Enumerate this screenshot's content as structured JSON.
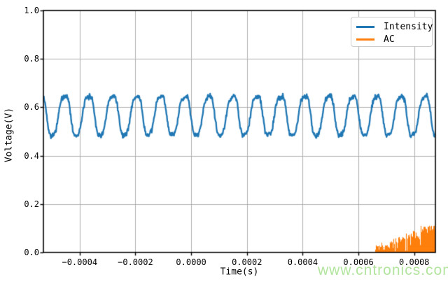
{
  "watermark": {
    "text": "www.cntronics.com",
    "color": "#b2e59e"
  },
  "chart_data": {
    "type": "line",
    "title": "",
    "xlabel": "Time(s)",
    "ylabel": "Voltage(V)",
    "xlim": [
      -0.00053,
      0.000876
    ],
    "ylim": [
      0.0,
      1.0
    ],
    "grid": true,
    "grid_color": "#b0b0b0",
    "spine_color": "#000000",
    "xticks": [
      {
        "value": -0.0004,
        "label": "−0.0004"
      },
      {
        "value": -0.0002,
        "label": "−0.0002"
      },
      {
        "value": 0.0,
        "label": "0.0000"
      },
      {
        "value": 0.0002,
        "label": "0.0002"
      },
      {
        "value": 0.0004,
        "label": "0.0004"
      },
      {
        "value": 0.0006,
        "label": "0.0006"
      },
      {
        "value": 0.0008,
        "label": "0.0008"
      }
    ],
    "yticks": [
      {
        "value": 0.0,
        "label": "0.0"
      },
      {
        "value": 0.2,
        "label": "0.2"
      },
      {
        "value": 0.4,
        "label": "0.4"
      },
      {
        "value": 0.6,
        "label": "0.6"
      },
      {
        "value": 0.8,
        "label": "0.8"
      },
      {
        "value": 1.0,
        "label": "1.0"
      }
    ],
    "legend": {
      "position": "upper right",
      "items": [
        "Intensity",
        "AC"
      ]
    },
    "series": [
      {
        "name": "Intensity",
        "color": "#1f77b4",
        "kind": "noisy_periodic_wave",
        "mean_v": 0.567,
        "amplitude_v": 0.088,
        "third_harmonic_v": 0.009,
        "second_harmonic_v": 0.006,
        "noise_v": 0.013,
        "period_s": 8.61e-05,
        "peak_time_s": -0.000454,
        "approx_peak_v": 0.66,
        "approx_trough_v": 0.475
      },
      {
        "name": "AC",
        "color": "#ff7f0e",
        "kind": "dense_spikes_from_zero",
        "start_time_s": 0.000658,
        "end_time_s": 0.000876,
        "max_v": 0.11,
        "envelope_steps": [
          {
            "t0": 0.000658,
            "t1": 0.00071,
            "v": 0.026
          },
          {
            "t0": 0.00071,
            "t1": 0.000746,
            "v": 0.04
          },
          {
            "t0": 0.000746,
            "t1": 0.000783,
            "v": 0.056
          },
          {
            "t0": 0.000783,
            "t1": 0.000821,
            "v": 0.068
          },
          {
            "t0": 0.000821,
            "t1": 0.000876,
            "v": 0.098
          }
        ]
      }
    ]
  }
}
